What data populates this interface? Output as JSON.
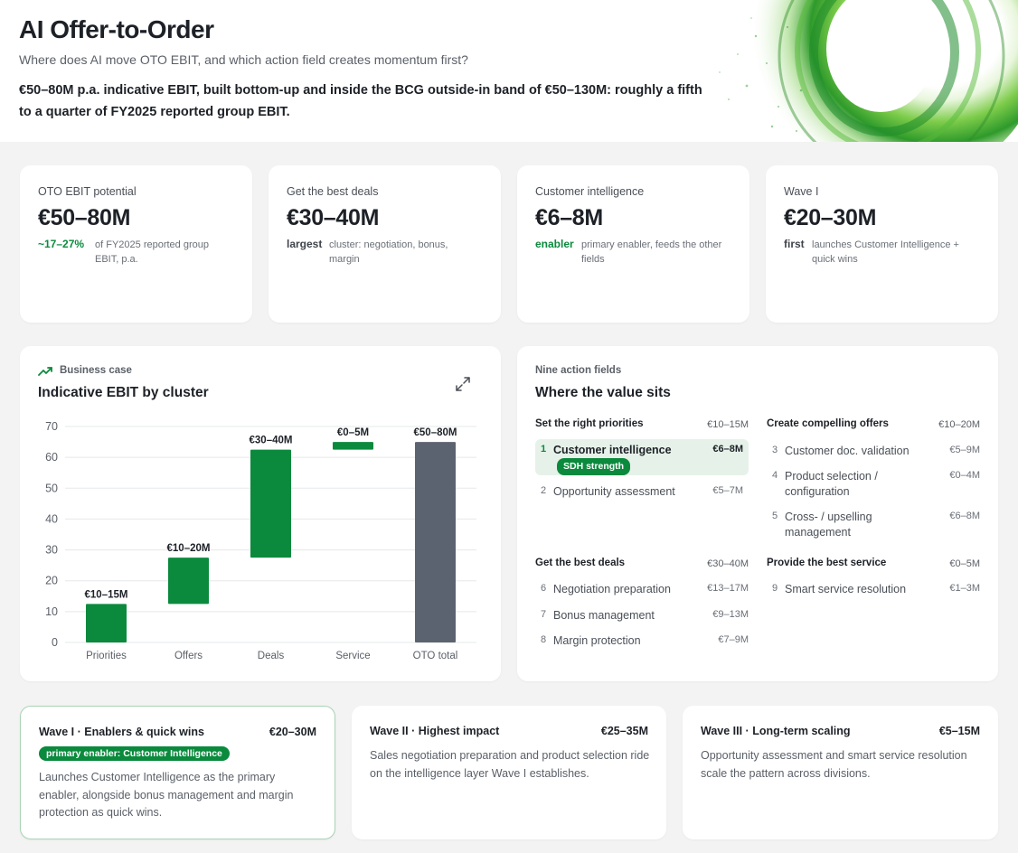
{
  "header": {
    "title": "AI Offer-to-Order",
    "subtitle": "Where does AI move OTO EBIT, and which action field creates momentum first?",
    "lead": "€50–80M p.a. indicative EBIT, built bottom-up and inside the BCG outside-in band of €50–130M: roughly a fifth to a quarter of FY2025 reported group EBIT."
  },
  "kpis": [
    {
      "label": "OTO EBIT potential",
      "value": "€50–80M",
      "tag": "~17–27%",
      "note": "of FY2025 reported group EBIT, p.a."
    },
    {
      "label": "Get the best deals",
      "value": "€30–40M",
      "tag": "largest",
      "note": "cluster: negotiation, bonus, margin"
    },
    {
      "label": "Customer intelligence",
      "value": "€6–8M",
      "tag": "enabler",
      "note": "primary enabler, feeds the other fields"
    },
    {
      "label": "Wave I",
      "value": "€20–30M",
      "tag": "first",
      "note": "launches Customer Intelligence + quick wins"
    }
  ],
  "business_case": {
    "eyebrow": "Business case",
    "title": "Indicative EBIT by cluster"
  },
  "chart_data": {
    "type": "bar",
    "subtype": "waterfall",
    "categories": [
      "Priorities",
      "Offers",
      "Deals",
      "Service",
      "OTO total"
    ],
    "bars": [
      {
        "category": "Priorities",
        "base": 0,
        "top": 12.5,
        "label": "€10–15M",
        "kind": "increment"
      },
      {
        "category": "Offers",
        "base": 12.5,
        "top": 27.5,
        "label": "€10–20M",
        "kind": "increment"
      },
      {
        "category": "Deals",
        "base": 27.5,
        "top": 62.5,
        "label": "€30–40M",
        "kind": "increment"
      },
      {
        "category": "Service",
        "base": 62.5,
        "top": 65,
        "label": "€0–5M",
        "kind": "increment"
      },
      {
        "category": "OTO total",
        "base": 0,
        "top": 65,
        "label": "€50–80M",
        "kind": "total"
      }
    ],
    "y_ticks": [
      0,
      10,
      20,
      30,
      40,
      50,
      60,
      70
    ],
    "ylim": [
      0,
      70
    ],
    "grid": true,
    "colors": {
      "increment": "#0b8a3d",
      "total": "#5c6370"
    }
  },
  "action_fields": {
    "eyebrow": "Nine action fields",
    "title": "Where the value sits",
    "groups": [
      {
        "title": "Set the right priorities",
        "value": "€10–15M",
        "items": [
          {
            "num": "1",
            "label": "Customer intelligence",
            "value": "€6–8M",
            "badge": "SDH strength"
          },
          {
            "num": "2",
            "label": "Opportunity assessment",
            "value": "€5–7M"
          }
        ]
      },
      {
        "title": "Create compelling offers",
        "value": "€10–20M",
        "items": [
          {
            "num": "3",
            "label": "Customer doc. validation",
            "value": "€5–9M"
          },
          {
            "num": "4",
            "label": "Product selection / configuration",
            "value": "€0–4M"
          },
          {
            "num": "5",
            "label": "Cross- / upselling management",
            "value": "€6–8M"
          }
        ]
      },
      {
        "title": "Get the best deals",
        "value": "€30–40M",
        "items": [
          {
            "num": "6",
            "label": "Negotiation preparation",
            "value": "€13–17M"
          },
          {
            "num": "7",
            "label": "Bonus management",
            "value": "€9–13M"
          },
          {
            "num": "8",
            "label": "Margin protection",
            "value": "€7–9M"
          }
        ]
      },
      {
        "title": "Provide the best service",
        "value": "€0–5M",
        "items": [
          {
            "num": "9",
            "label": "Smart service resolution",
            "value": "€1–3M"
          }
        ]
      }
    ]
  },
  "waves": [
    {
      "title": "Wave I · Enablers & quick wins",
      "value": "€20–30M",
      "badge": "primary enabler: Customer Intelligence",
      "text": "Launches Customer Intelligence as the primary enabler, alongside bonus management and margin protection as quick wins."
    },
    {
      "title": "Wave II · Highest impact",
      "value": "€25–35M",
      "text": "Sales negotiation preparation and product selection ride on the intelligence layer Wave I establishes."
    },
    {
      "title": "Wave III · Long-term scaling",
      "value": "€5–15M",
      "text": "Opportunity assessment and smart service resolution scale the pattern across divisions."
    }
  ],
  "icons": {
    "trend": "trending-up-icon",
    "expand": "expand-icon"
  },
  "colors": {
    "accent": "#0b8a3d",
    "total": "#5c6370"
  }
}
